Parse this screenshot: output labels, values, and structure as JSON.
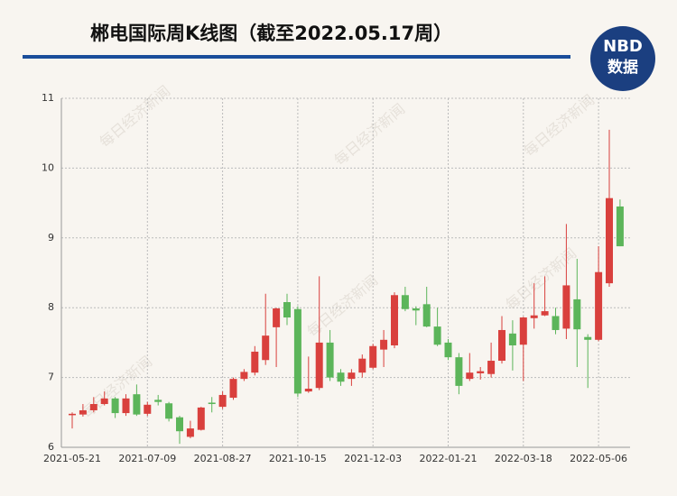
{
  "chart_data": {
    "type": "candlestick",
    "title": "郴电国际周K线图（截至2022.05.17周）",
    "logo": {
      "top": "NBD",
      "bottom": "数据"
    },
    "watermark": "每日经济新闻",
    "categories": [
      "2021-05-21",
      null,
      null,
      null,
      null,
      null,
      null,
      "2021-07-09",
      null,
      null,
      null,
      null,
      null,
      null,
      "2021-08-27",
      null,
      null,
      null,
      null,
      null,
      null,
      "2021-10-15",
      null,
      null,
      null,
      null,
      null,
      null,
      "2021-12-03",
      null,
      null,
      null,
      null,
      null,
      null,
      "2022-01-21",
      null,
      null,
      null,
      null,
      null,
      null,
      "2022-03-18",
      null,
      null,
      null,
      null,
      null,
      null,
      "2022-05-06",
      null,
      null
    ],
    "open": [
      6.46,
      6.47,
      6.53,
      6.62,
      6.7,
      6.49,
      6.76,
      6.48,
      6.68,
      6.63,
      6.43,
      6.15,
      6.25,
      6.64,
      6.58,
      6.71,
      6.98,
      7.07,
      7.25,
      7.72,
      8.08,
      7.98,
      6.8,
      6.85,
      7.5,
      7.07,
      6.98,
      7.07,
      7.14,
      7.4,
      7.46,
      8.18,
      7.99,
      8.05,
      7.73,
      7.5,
      7.29,
      6.98,
      7.06,
      7.05,
      7.24,
      7.63,
      7.47,
      7.85,
      7.89,
      7.88,
      7.7,
      8.12,
      7.58,
      7.54,
      8.35,
      9.45
    ],
    "high": [
      6.5,
      6.62,
      6.72,
      6.8,
      6.72,
      6.76,
      6.9,
      6.65,
      6.75,
      6.65,
      6.45,
      6.38,
      6.58,
      6.72,
      6.8,
      7.0,
      7.12,
      7.45,
      8.2,
      8.0,
      8.2,
      8.02,
      7.3,
      8.45,
      7.68,
      7.12,
      7.12,
      7.33,
      7.48,
      7.68,
      8.22,
      8.3,
      8.02,
      8.3,
      8.0,
      7.55,
      7.35,
      7.35,
      7.15,
      7.5,
      7.88,
      7.82,
      7.87,
      8.35,
      8.45,
      8.0,
      9.2,
      8.7,
      7.62,
      8.88,
      10.55,
      9.55
    ],
    "low": [
      6.27,
      6.44,
      6.5,
      6.6,
      6.42,
      6.45,
      6.45,
      6.45,
      6.6,
      6.37,
      6.05,
      6.13,
      6.24,
      6.5,
      6.55,
      6.68,
      6.95,
      7.03,
      7.18,
      7.15,
      7.75,
      6.72,
      6.78,
      6.82,
      6.95,
      6.88,
      6.88,
      7.0,
      7.12,
      7.15,
      7.42,
      7.95,
      7.75,
      7.72,
      7.45,
      7.25,
      6.76,
      6.95,
      6.97,
      7.0,
      7.2,
      7.1,
      6.95,
      7.7,
      7.88,
      7.62,
      7.55,
      7.15,
      6.85,
      7.52,
      8.3,
      8.88
    ],
    "close": [
      6.48,
      6.53,
      6.62,
      6.7,
      6.49,
      6.7,
      6.47,
      6.61,
      6.65,
      6.41,
      6.23,
      6.27,
      6.57,
      6.62,
      6.75,
      6.98,
      7.08,
      7.37,
      7.6,
      7.99,
      7.86,
      6.77,
      6.84,
      7.5,
      7.0,
      6.94,
      7.07,
      7.27,
      7.45,
      7.54,
      8.18,
      7.98,
      7.96,
      7.73,
      7.47,
      7.29,
      6.88,
      7.07,
      7.09,
      7.24,
      7.68,
      7.46,
      7.86,
      7.89,
      7.95,
      7.68,
      8.32,
      7.69,
      7.54,
      8.51,
      9.57,
      8.88
    ],
    "up_color": "#d9403d",
    "down_color": "#5cb55a",
    "ylim": [
      6,
      11
    ],
    "yticks": [
      6,
      7,
      8,
      9,
      10,
      11
    ],
    "grid": true
  }
}
